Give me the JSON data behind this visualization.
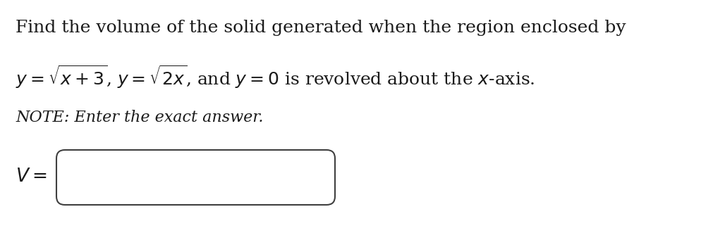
{
  "line1": "Find the volume of the solid generated when the region enclosed by",
  "line2": "$y = \\sqrt{x+3}$, $y = \\sqrt{2x}$, and $y = 0$ is revolved about the $x$-axis.",
  "note": "NOTE: Enter the exact answer.",
  "v_label": "$V =$",
  "bg_color": "#ffffff",
  "text_color": "#1a1a1a",
  "font_size_main": 18,
  "font_size_note": 16,
  "font_size_v": 19
}
